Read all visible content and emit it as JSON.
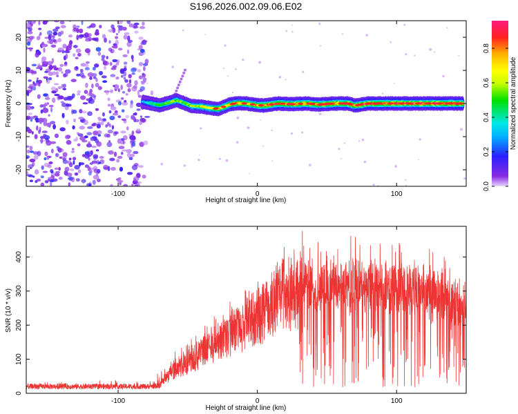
{
  "title": "S196.2026.002.09.06.E02",
  "chart_data": [
    {
      "type": "heatmap",
      "xlabel": "Height of straight line (km)",
      "ylabel": "Frequency (Hz)",
      "xlim": [
        -166,
        150
      ],
      "ylim": [
        -25,
        25
      ],
      "xticks": [
        -100,
        0,
        100
      ],
      "xtick_labels": [
        "-100",
        "0",
        "100"
      ],
      "yticks": [
        -20,
        -10,
        0,
        10,
        20
      ],
      "ytick_labels": [
        "-20",
        "-10",
        "0",
        "10",
        "20"
      ],
      "ridge": {
        "x": [
          -82,
          -76,
          -70,
          -63,
          -58,
          -53,
          -47,
          -40,
          -34,
          -28,
          -20,
          -15,
          -8,
          0,
          5,
          15,
          25,
          35,
          45,
          55,
          65,
          70,
          80,
          90,
          100,
          110,
          120,
          130,
          140,
          148
        ],
        "freq": [
          0.5,
          0,
          -0.5,
          0.3,
          1.0,
          0.2,
          -0.8,
          -0.9,
          -1.4,
          -1.6,
          -0.3,
          0.1,
          0,
          -0.5,
          -0.6,
          0,
          -0.2,
          0,
          -0.3,
          0,
          0,
          -0.6,
          0,
          0,
          0,
          0,
          0,
          0,
          0,
          0
        ],
        "amplitude": [
          0.3,
          0.45,
          0.5,
          0.55,
          0.6,
          0.55,
          0.6,
          0.65,
          0.7,
          0.72,
          0.75,
          0.8,
          0.8,
          0.82,
          0.85,
          0.85,
          0.85,
          0.86,
          0.86,
          0.88,
          0.88,
          0.88,
          0.9,
          0.9,
          0.9,
          0.9,
          0.9,
          0.9,
          0.9,
          0.9
        ]
      },
      "colorbar": {
        "label": "Normalized spectral amplitude",
        "range": [
          0,
          0.96
        ],
        "ticks": [
          0.0,
          0.2,
          0.4,
          0.6,
          0.8
        ],
        "tick_labels": [
          "0.0",
          "0.2",
          "0.4",
          "0.6",
          "0.8"
        ],
        "colors": [
          "#e8d6ff",
          "#8a2be2",
          "#2a1fff",
          "#00b0ff",
          "#00e8e8",
          "#00e000",
          "#c8ff00",
          "#ffff00",
          "#ffb000",
          "#ff2020",
          "#ff1a80"
        ]
      }
    },
    {
      "type": "line",
      "xlabel": "Height of straight line (km)",
      "ylabel": "SNR (10 * v/v)",
      "xlim": [
        -166,
        150
      ],
      "ylim": [
        0,
        490
      ],
      "xticks": [
        -100,
        0,
        100
      ],
      "xtick_labels": [
        "-100",
        "0",
        "100"
      ],
      "yticks": [
        0,
        100,
        200,
        300,
        400
      ],
      "ytick_labels": [
        "0",
        "100",
        "200",
        "300",
        "400"
      ],
      "color": "#ee3333",
      "envelope_x": [
        -166,
        -80,
        -72,
        -66,
        -60,
        -55,
        -50,
        -45,
        -40,
        -35,
        -30,
        -25,
        -20,
        -15,
        -10,
        -5,
        0,
        5,
        10,
        15,
        20,
        25,
        30,
        35,
        40,
        50,
        60,
        70,
        80,
        90,
        100,
        110,
        120,
        130,
        140,
        150
      ],
      "envelope_y": [
        20,
        20,
        22,
        60,
        90,
        105,
        120,
        140,
        165,
        180,
        200,
        215,
        235,
        250,
        270,
        290,
        305,
        325,
        350,
        380,
        400,
        405,
        400,
        350,
        330,
        350,
        360,
        350,
        355,
        350,
        345,
        340,
        330,
        320,
        300,
        270
      ]
    }
  ]
}
